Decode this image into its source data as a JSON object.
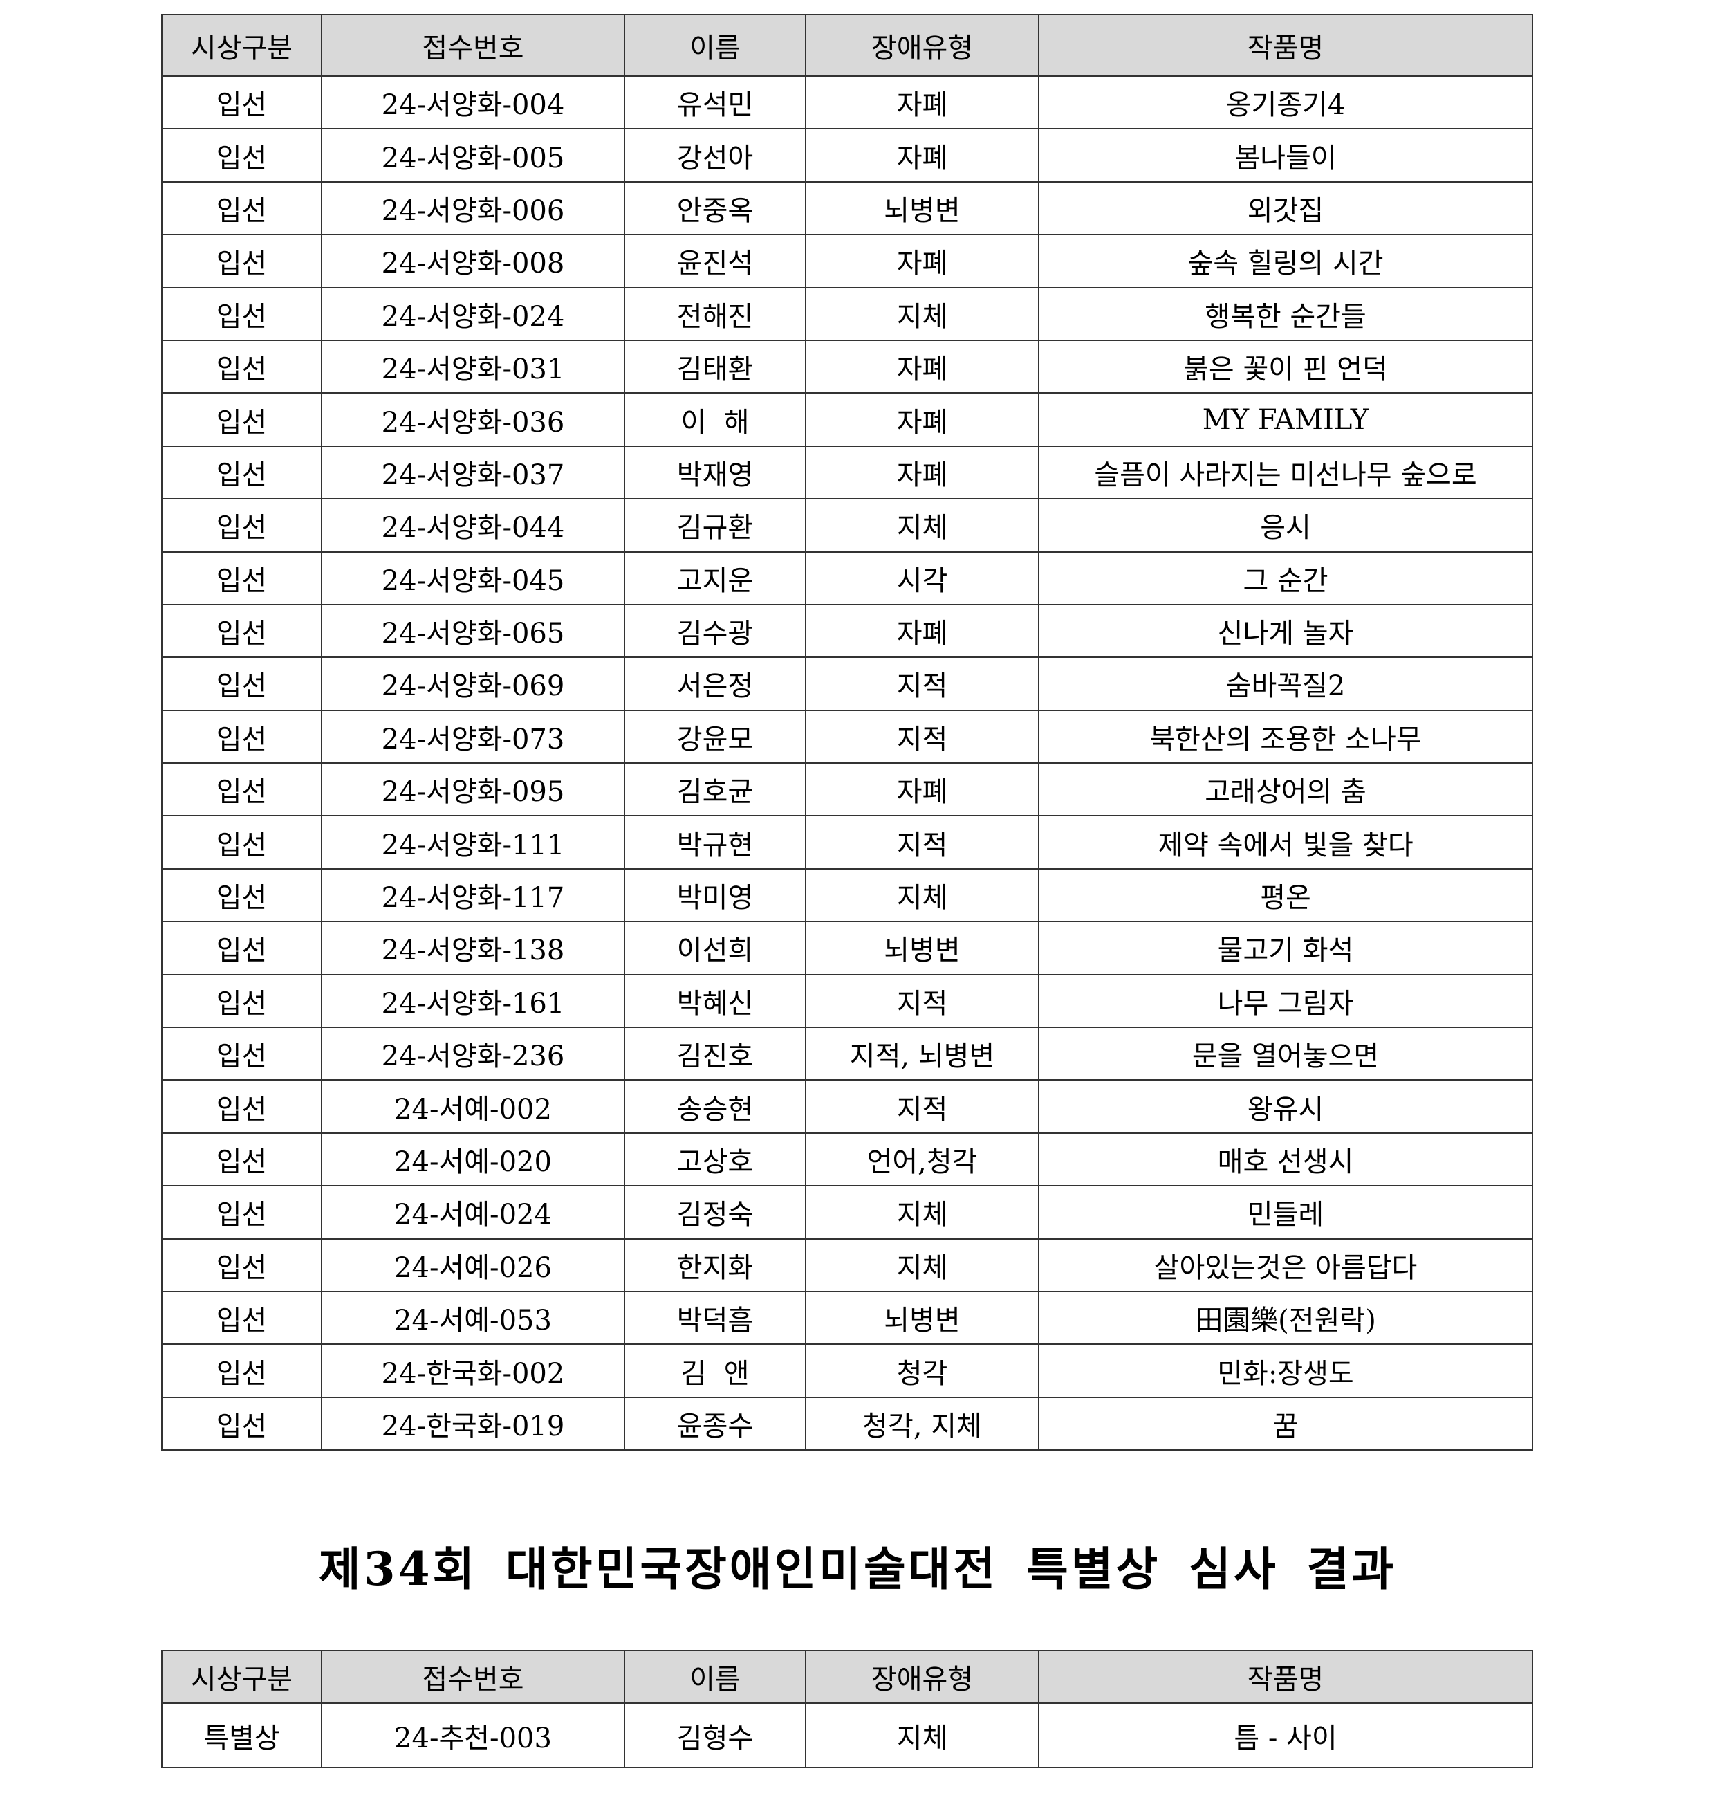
{
  "table1": {
    "headers": [
      "시상구분",
      "접수번호",
      "이름",
      "장애유형",
      "작품명"
    ],
    "rows": [
      [
        "입선",
        "24-서양화-004",
        "유석민",
        "자폐",
        "옹기종기4"
      ],
      [
        "입선",
        "24-서양화-005",
        "강선아",
        "자폐",
        "봄나들이"
      ],
      [
        "입선",
        "24-서양화-006",
        "안중옥",
        "뇌병변",
        "외갓집"
      ],
      [
        "입선",
        "24-서양화-008",
        "윤진석",
        "자폐",
        "숲속 힐링의 시간"
      ],
      [
        "입선",
        "24-서양화-024",
        "전해진",
        "지체",
        "행복한 순간들"
      ],
      [
        "입선",
        "24-서양화-031",
        "김태환",
        "자폐",
        "붉은 꽃이 핀 언덕"
      ],
      [
        "입선",
        "24-서양화-036",
        "이  해",
        "자폐",
        "MY FAMILY"
      ],
      [
        "입선",
        "24-서양화-037",
        "박재영",
        "자폐",
        "슬픔이 사라지는 미선나무 숲으로"
      ],
      [
        "입선",
        "24-서양화-044",
        "김규환",
        "지체",
        "응시"
      ],
      [
        "입선",
        "24-서양화-045",
        "고지운",
        "시각",
        "그 순간"
      ],
      [
        "입선",
        "24-서양화-065",
        "김수광",
        "자폐",
        "신나게 놀자"
      ],
      [
        "입선",
        "24-서양화-069",
        "서은정",
        "지적",
        "숨바꼭질2"
      ],
      [
        "입선",
        "24-서양화-073",
        "강윤모",
        "지적",
        "북한산의 조용한 소나무"
      ],
      [
        "입선",
        "24-서양화-095",
        "김호균",
        "자폐",
        "고래상어의 춤"
      ],
      [
        "입선",
        "24-서양화-111",
        "박규현",
        "지적",
        "제약 속에서 빛을 찾다"
      ],
      [
        "입선",
        "24-서양화-117",
        "박미영",
        "지체",
        "평온"
      ],
      [
        "입선",
        "24-서양화-138",
        "이선희",
        "뇌병변",
        "물고기 화석"
      ],
      [
        "입선",
        "24-서양화-161",
        "박혜신",
        "지적",
        "나무 그림자"
      ],
      [
        "입선",
        "24-서양화-236",
        "김진호",
        "지적, 뇌병변",
        "문을 열어놓으면"
      ],
      [
        "입선",
        "24-서예-002",
        "송승현",
        "지적",
        "왕유시"
      ],
      [
        "입선",
        "24-서예-020",
        "고상호",
        "언어,청각",
        "매호 선생시"
      ],
      [
        "입선",
        "24-서예-024",
        "김정숙",
        "지체",
        "민들레"
      ],
      [
        "입선",
        "24-서예-026",
        "한지화",
        "지체",
        "살아있는것은 아름답다"
      ],
      [
        "입선",
        "24-서예-053",
        "박덕흠",
        "뇌병변",
        "田園樂(전원락)"
      ],
      [
        "입선",
        "24-한국화-002",
        "김  앤",
        "청각",
        "민화:장생도"
      ],
      [
        "입선",
        "24-한국화-019",
        "윤종수",
        "청각, 지체",
        "꿈"
      ]
    ]
  },
  "section_title": "제34회 대한민국장애인미술대전 특별상 심사 결과",
  "table2": {
    "headers": [
      "시상구분",
      "접수번호",
      "이름",
      "장애유형",
      "작품명"
    ],
    "rows": [
      [
        "특별상",
        "24-추천-003",
        "김형수",
        "지체",
        "틈 - 사이"
      ]
    ]
  }
}
